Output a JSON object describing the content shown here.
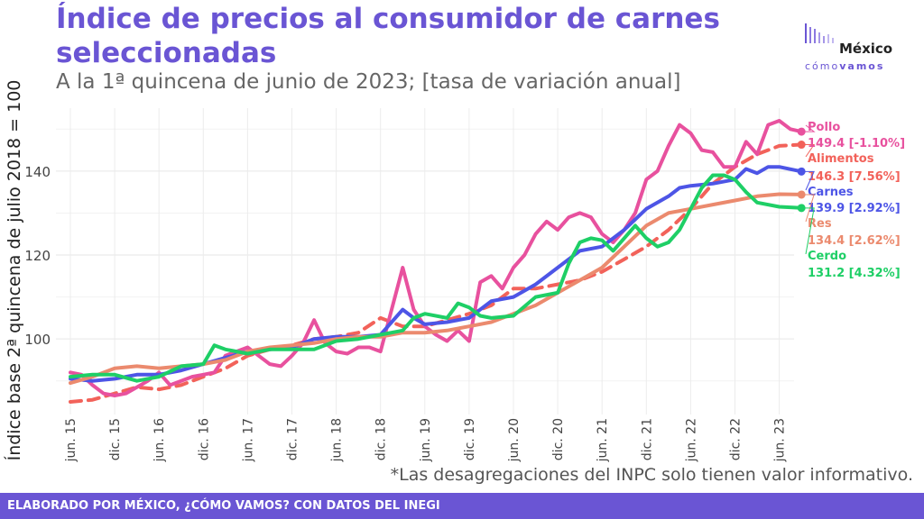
{
  "header": {
    "title": "Índice de precios al consumidor de carnes seleccionadas",
    "subtitle": "A la 1ª quincena de junio de 2023; [tasa de variación anual]"
  },
  "logo": {
    "word": "México",
    "sub_light": "cómo",
    "sub_bold": "vamos"
  },
  "footnote": "*Las desagregaciones del INPC solo tienen valor informativo.",
  "footer": "ELABORADO POR MÉXICO, ¿CÓMO VAMOS? CON DATOS DEL INEGI",
  "colors": {
    "Pollo": "#e8519e",
    "Alimentos": "#f2625a",
    "Carnes": "#4d55e6",
    "Res": "#eb8a6e",
    "Cerdo": "#1ecf66"
  },
  "chart_data": {
    "type": "line",
    "ylabel": "Índice base 2ª quincena de julio 2018 = 100",
    "xlabel": "",
    "ylim": [
      82,
      155
    ],
    "yticks": [
      100,
      120,
      140
    ],
    "x_tick_labels": [
      "jun. 15",
      "dic. 15",
      "jun. 16",
      "dic. 16",
      "jun. 17",
      "dic. 17",
      "jun. 18",
      "dic. 18",
      "jun. 19",
      "dic. 19",
      "jun. 20",
      "dic. 20",
      "jun. 21",
      "dic. 21",
      "jun. 22",
      "dic. 22",
      "jun. 23"
    ],
    "grid": true,
    "series": [
      {
        "name": "Alimentos",
        "dashed": true,
        "label": "146.3 [7.56%]",
        "points": [
          [
            0,
            85
          ],
          [
            2,
            85.5
          ],
          [
            4,
            87
          ],
          [
            6,
            88.5
          ],
          [
            8,
            88
          ],
          [
            10,
            89
          ],
          [
            12,
            91
          ],
          [
            14,
            93
          ],
          [
            16,
            96
          ],
          [
            18,
            97.5
          ],
          [
            20,
            98.5
          ],
          [
            22,
            100
          ],
          [
            24,
            100.5
          ],
          [
            26,
            101.5
          ],
          [
            28,
            105
          ],
          [
            30,
            103
          ],
          [
            32,
            103
          ],
          [
            34,
            104.5
          ],
          [
            36,
            106
          ],
          [
            38,
            108
          ],
          [
            40,
            112
          ],
          [
            42,
            112
          ],
          [
            44,
            113
          ],
          [
            46,
            114
          ],
          [
            48,
            116
          ],
          [
            50,
            119
          ],
          [
            52,
            122
          ],
          [
            54,
            126
          ],
          [
            56,
            131
          ],
          [
            58,
            137
          ],
          [
            60,
            141
          ],
          [
            62,
            144
          ],
          [
            64,
            146
          ],
          [
            66,
            146.3
          ]
        ]
      },
      {
        "name": "Pollo",
        "label": "149.4 [-1.10%]",
        "points": [
          [
            0,
            92
          ],
          [
            1,
            91.5
          ],
          [
            2,
            89
          ],
          [
            3,
            87
          ],
          [
            4,
            86.5
          ],
          [
            5,
            87
          ],
          [
            6,
            88.5
          ],
          [
            7,
            90
          ],
          [
            8,
            92
          ],
          [
            9,
            89
          ],
          [
            10,
            90
          ],
          [
            11,
            91
          ],
          [
            12,
            91.5
          ],
          [
            13,
            92
          ],
          [
            14,
            96
          ],
          [
            15,
            97
          ],
          [
            16,
            98
          ],
          [
            17,
            96
          ],
          [
            18,
            94
          ],
          [
            19,
            93.5
          ],
          [
            20,
            96
          ],
          [
            21,
            99
          ],
          [
            22,
            104.5
          ],
          [
            23,
            99
          ],
          [
            24,
            97
          ],
          [
            25,
            96.5
          ],
          [
            26,
            98
          ],
          [
            27,
            98
          ],
          [
            28,
            97
          ],
          [
            29,
            107
          ],
          [
            30,
            117
          ],
          [
            31,
            107
          ],
          [
            32,
            103
          ],
          [
            33,
            101
          ],
          [
            34,
            99.5
          ],
          [
            35,
            102
          ],
          [
            36,
            99.5
          ],
          [
            37,
            113.5
          ],
          [
            38,
            115
          ],
          [
            39,
            112
          ],
          [
            40,
            117
          ],
          [
            41,
            120
          ],
          [
            42,
            125
          ],
          [
            43,
            128
          ],
          [
            44,
            126
          ],
          [
            45,
            129
          ],
          [
            46,
            130
          ],
          [
            47,
            129
          ],
          [
            48,
            125
          ],
          [
            49,
            123
          ],
          [
            50,
            126
          ],
          [
            51,
            130
          ],
          [
            52,
            138
          ],
          [
            53,
            140
          ],
          [
            54,
            146
          ],
          [
            55,
            151
          ],
          [
            56,
            149
          ],
          [
            57,
            145
          ],
          [
            58,
            144.5
          ],
          [
            59,
            141
          ],
          [
            60,
            141
          ],
          [
            61,
            147
          ],
          [
            62,
            144
          ],
          [
            63,
            151
          ],
          [
            64,
            152
          ],
          [
            65,
            150
          ],
          [
            66,
            149.4
          ]
        ]
      },
      {
        "name": "Carnes",
        "label": "139.9 [2.92%]",
        "points": [
          [
            0,
            90.5
          ],
          [
            2,
            90
          ],
          [
            4,
            90.5
          ],
          [
            6,
            91.5
          ],
          [
            8,
            91.5
          ],
          [
            10,
            92.5
          ],
          [
            12,
            94
          ],
          [
            14,
            95.5
          ],
          [
            16,
            97
          ],
          [
            18,
            97.5
          ],
          [
            20,
            98
          ],
          [
            22,
            100
          ],
          [
            24,
            100.5
          ],
          [
            26,
            100.5
          ],
          [
            28,
            101
          ],
          [
            30,
            107
          ],
          [
            31,
            105
          ],
          [
            32,
            103.5
          ],
          [
            34,
            104
          ],
          [
            36,
            105
          ],
          [
            38,
            109
          ],
          [
            40,
            110
          ],
          [
            42,
            113
          ],
          [
            44,
            117
          ],
          [
            46,
            121
          ],
          [
            48,
            122
          ],
          [
            50,
            126
          ],
          [
            52,
            131
          ],
          [
            54,
            134
          ],
          [
            55,
            136
          ],
          [
            56,
            136.5
          ],
          [
            58,
            137
          ],
          [
            60,
            138
          ],
          [
            61,
            140.5
          ],
          [
            62,
            139.5
          ],
          [
            63,
            141
          ],
          [
            64,
            141
          ],
          [
            66,
            139.9
          ]
        ]
      },
      {
        "name": "Res",
        "label": "134.4 [2.62%]",
        "points": [
          [
            0,
            89.5
          ],
          [
            2,
            91
          ],
          [
            4,
            93
          ],
          [
            6,
            93.5
          ],
          [
            8,
            93
          ],
          [
            10,
            93.5
          ],
          [
            12,
            94
          ],
          [
            14,
            95
          ],
          [
            16,
            97
          ],
          [
            18,
            98
          ],
          [
            20,
            98.5
          ],
          [
            22,
            99
          ],
          [
            24,
            100
          ],
          [
            26,
            100.5
          ],
          [
            28,
            100.5
          ],
          [
            30,
            101.5
          ],
          [
            32,
            101.5
          ],
          [
            34,
            102
          ],
          [
            36,
            103
          ],
          [
            38,
            104
          ],
          [
            40,
            106
          ],
          [
            42,
            108
          ],
          [
            44,
            111
          ],
          [
            46,
            114
          ],
          [
            48,
            117
          ],
          [
            50,
            122
          ],
          [
            52,
            127
          ],
          [
            54,
            130
          ],
          [
            56,
            131
          ],
          [
            58,
            132
          ],
          [
            60,
            133
          ],
          [
            62,
            134
          ],
          [
            64,
            134.5
          ],
          [
            66,
            134.4
          ]
        ]
      },
      {
        "name": "Cerdo",
        "label": "131.2 [4.32%]",
        "points": [
          [
            0,
            91
          ],
          [
            2,
            91.5
          ],
          [
            4,
            91.5
          ],
          [
            6,
            90
          ],
          [
            8,
            91
          ],
          [
            10,
            93.5
          ],
          [
            12,
            94
          ],
          [
            13,
            98.5
          ],
          [
            14,
            97.5
          ],
          [
            15,
            97
          ],
          [
            16,
            96.5
          ],
          [
            18,
            97.5
          ],
          [
            20,
            97.5
          ],
          [
            22,
            97.5
          ],
          [
            24,
            99.5
          ],
          [
            26,
            100
          ],
          [
            28,
            101
          ],
          [
            30,
            102
          ],
          [
            31,
            105
          ],
          [
            32,
            106
          ],
          [
            34,
            105
          ],
          [
            35,
            108.5
          ],
          [
            36,
            107.5
          ],
          [
            37,
            105.5
          ],
          [
            38,
            105
          ],
          [
            40,
            105.5
          ],
          [
            42,
            110
          ],
          [
            44,
            111
          ],
          [
            45,
            118
          ],
          [
            46,
            123
          ],
          [
            47,
            124
          ],
          [
            48,
            123.5
          ],
          [
            49,
            121
          ],
          [
            50,
            124
          ],
          [
            51,
            127
          ],
          [
            52,
            124
          ],
          [
            53,
            122
          ],
          [
            54,
            123
          ],
          [
            55,
            126
          ],
          [
            56,
            131
          ],
          [
            57,
            136
          ],
          [
            58,
            139
          ],
          [
            59,
            139
          ],
          [
            60,
            138
          ],
          [
            61,
            135
          ],
          [
            62,
            132.5
          ],
          [
            64,
            131.5
          ],
          [
            66,
            131.2
          ]
        ]
      }
    ]
  }
}
